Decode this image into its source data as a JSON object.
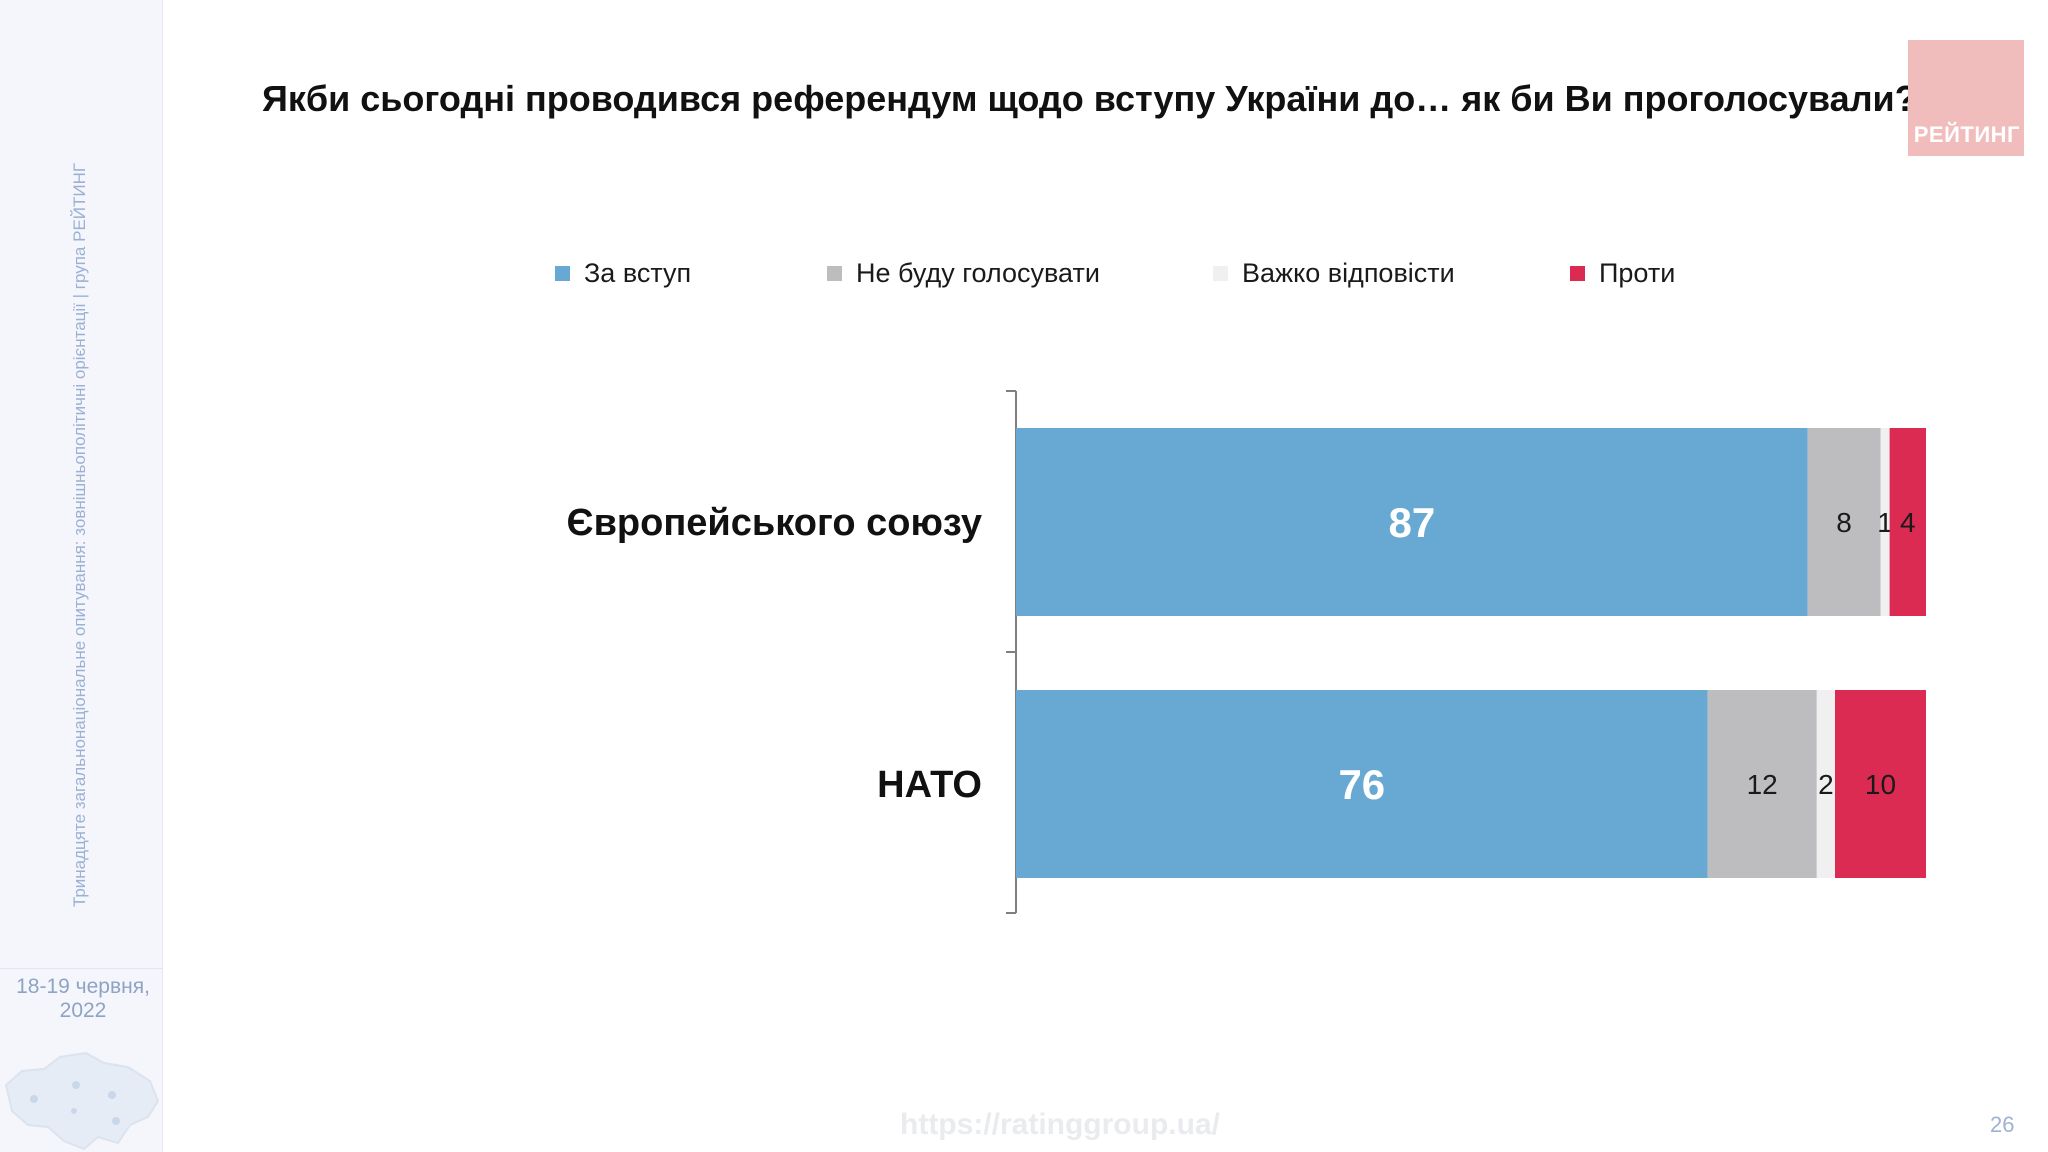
{
  "sidebar": {
    "rotated_text": "Тринадцяте загальнонаціональне опитування: зовнішньополітичні орієнтації | група РЕЙТИНГ",
    "date_line1": "18-19 червня,",
    "date_line2": "2022"
  },
  "title": "Якби сьогодні проводився референдум щодо вступу України до… як би Ви проголосували?",
  "logo_text": "РЕЙТИНГ",
  "legend": [
    {
      "label": "За вступ",
      "color": "#67a9d2"
    },
    {
      "label": "Не буду голосувати",
      "color": "#bdbdbf"
    },
    {
      "label": "Важко відповісти",
      "color": "#f0f0f0"
    },
    {
      "label": "Проти",
      "color": "#dc2b52"
    }
  ],
  "chart_data": {
    "type": "bar",
    "orientation": "horizontal",
    "stacked": true,
    "categories": [
      "Європейського союзу",
      "НАТО"
    ],
    "series": [
      {
        "name": "За вступ",
        "values": [
          87,
          76
        ],
        "color": "#67a9d2"
      },
      {
        "name": "Не буду голосувати",
        "values": [
          8,
          12
        ],
        "color": "#bdbdbf"
      },
      {
        "name": "Важко відповісти",
        "values": [
          1,
          2
        ],
        "color": "#f0f0f0"
      },
      {
        "name": "Проти",
        "values": [
          4,
          10
        ],
        "color": "#dc2b52"
      }
    ],
    "xlim": [
      0,
      100
    ],
    "grid": false,
    "legend_position": "top"
  },
  "footer": {
    "url": "https://ratinggroup.ua/",
    "page_number": "26"
  }
}
